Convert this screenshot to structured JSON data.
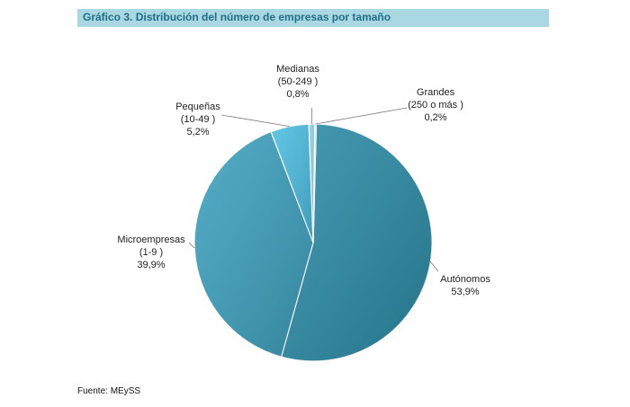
{
  "title": "Gráfico 3. Distribución del número de empresas por tamaño",
  "source": "Fuente: MEySS",
  "colors": {
    "title_bar": "#a9d8e3",
    "title_text": "#1f6f86"
  },
  "chart_data": {
    "type": "pie",
    "title": "Gráfico 3. Distribución del número de empresas por tamaño",
    "slices": [
      {
        "label_lines": [
          "Autónomos",
          "53,9%"
        ],
        "value": 53.9,
        "color": "#2a8aa5"
      },
      {
        "label_lines": [
          "Microempresas",
          "(1-9 )",
          "39,9%"
        ],
        "value": 39.9,
        "color": "#3ca0bd"
      },
      {
        "label_lines": [
          "Pequeñas",
          "(10-49 )",
          "5,2%"
        ],
        "value": 5.2,
        "color": "#4cbde0"
      },
      {
        "label_lines": [
          "Medianas",
          "(50-249 )",
          "0,8%"
        ],
        "value": 0.8,
        "color": "#8fd3e6"
      },
      {
        "label_lines": [
          "Grandes",
          "(250 o más )",
          "0,2%"
        ],
        "value": 0.2,
        "color": "#c9e7f0"
      }
    ]
  }
}
